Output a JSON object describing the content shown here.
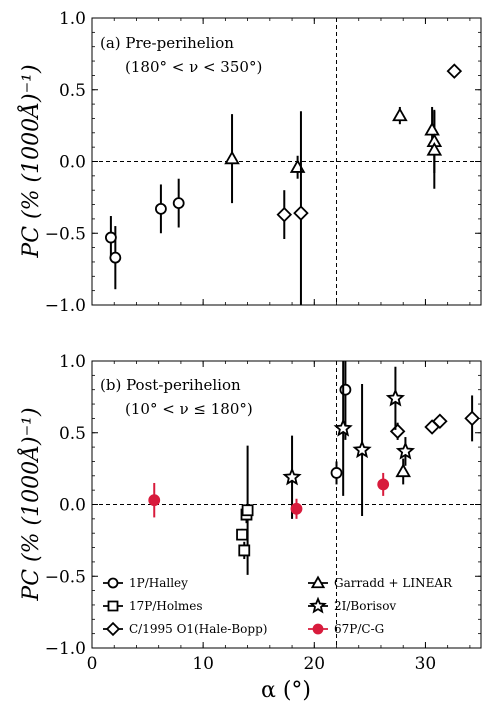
{
  "chart_data": [
    {
      "type": "scatter",
      "panel": "a",
      "title": "(a) Pre-perihelion",
      "subtitle": "(180° < ν < 350°)",
      "xlabel": "α (°)",
      "ylabel": "PC (% (1000Å)⁻¹)",
      "xlim": [
        0,
        35
      ],
      "ylim": [
        -1.0,
        1.0
      ],
      "xticks": [
        0,
        10,
        20,
        30
      ],
      "yticks": [
        -1.0,
        -0.5,
        0.0,
        0.5,
        1.0
      ],
      "tick_labels_y": [
        "−1.0",
        "−0.5",
        "0.0",
        "0.5",
        "1.0"
      ],
      "tick_labels_x": [
        "0",
        "10",
        "20",
        "30"
      ],
      "show_x_tick_labels": false,
      "vline_x": 22,
      "hline_y": 0,
      "grid": false,
      "series": [
        {
          "name": "1P/Halley",
          "marker": "circle",
          "color": "#000000",
          "filled": false,
          "points": [
            {
              "x": 1.7,
              "y": -0.53,
              "err": 0.15
            },
            {
              "x": 2.1,
              "y": -0.67,
              "err": 0.22
            },
            {
              "x": 6.2,
              "y": -0.33,
              "err": 0.17
            },
            {
              "x": 7.8,
              "y": -0.29,
              "err": 0.17
            }
          ]
        },
        {
          "name": "Garradd + LINEAR",
          "marker": "triangle",
          "color": "#000000",
          "filled": false,
          "points": [
            {
              "x": 12.6,
              "y": 0.02,
              "err": 0.31
            },
            {
              "x": 18.5,
              "y": -0.04,
              "err": 0.08
            },
            {
              "x": 27.7,
              "y": 0.32,
              "err": 0.06
            },
            {
              "x": 30.6,
              "y": 0.22,
              "err": 0.16
            },
            {
              "x": 30.8,
              "y": 0.14,
              "err": 0.22
            },
            {
              "x": 30.8,
              "y": 0.08,
              "err": 0.27
            }
          ]
        },
        {
          "name": "C/1995 O1(Hale-Bopp)",
          "marker": "diamond",
          "color": "#000000",
          "filled": false,
          "points": [
            {
              "x": 17.3,
              "y": -0.37,
              "err": 0.17
            },
            {
              "x": 18.8,
              "y": -0.36,
              "err": 0.71
            },
            {
              "x": 32.6,
              "y": 0.63,
              "err": 0
            }
          ]
        }
      ]
    },
    {
      "type": "scatter",
      "panel": "b",
      "title": "(b) Post-perihelion",
      "subtitle": "(10° < ν ≤ 180°)",
      "xlabel": "α (°)",
      "ylabel": "PC (% (1000Å)⁻¹)",
      "xlim": [
        0,
        35
      ],
      "ylim": [
        -1.0,
        1.0
      ],
      "xticks": [
        0,
        10,
        20,
        30
      ],
      "yticks": [
        -1.0,
        -0.5,
        0.0,
        0.5,
        1.0
      ],
      "tick_labels_y": [
        "−1.0",
        "−0.5",
        "0.0",
        "0.5",
        "1.0"
      ],
      "tick_labels_x": [
        "0",
        "10",
        "20",
        "30"
      ],
      "show_x_tick_labels": true,
      "vline_x": 22,
      "hline_y": 0,
      "grid": false,
      "legend_placement": "bottom",
      "legend": [
        {
          "label": "1P/Halley",
          "marker": "circle",
          "color": "#000000",
          "filled": false
        },
        {
          "label": "17P/Holmes",
          "marker": "square",
          "color": "#000000",
          "filled": false
        },
        {
          "label": "C/1995 O1(Hale-Bopp)",
          "marker": "diamond",
          "color": "#000000",
          "filled": false
        },
        {
          "label": "Garradd + LINEAR",
          "marker": "triangle",
          "color": "#000000",
          "filled": false
        },
        {
          "label": "2I/Borisov",
          "marker": "star",
          "color": "#000000",
          "filled": false
        },
        {
          "label": "67P/C-G",
          "marker": "circle",
          "color": "#d81b3c",
          "filled": true
        }
      ],
      "series": [
        {
          "name": "1P/Halley",
          "marker": "circle",
          "color": "#000000",
          "filled": false,
          "points": [
            {
              "x": 22.0,
              "y": 0.22,
              "err": 0.08
            },
            {
              "x": 22.8,
              "y": 0.8,
              "err": 0.35
            }
          ]
        },
        {
          "name": "17P/Holmes",
          "marker": "square",
          "color": "#000000",
          "filled": false,
          "points": [
            {
              "x": 13.5,
              "y": -0.21,
              "err": 0.04
            },
            {
              "x": 13.7,
              "y": -0.32,
              "err": 0.06
            },
            {
              "x": 13.9,
              "y": -0.07,
              "err": 0.06
            },
            {
              "x": 14.0,
              "y": -0.04,
              "err": 0.45
            }
          ]
        },
        {
          "name": "C/1995 O1(Hale-Bopp)",
          "marker": "diamond",
          "color": "#000000",
          "filled": false,
          "points": [
            {
              "x": 27.5,
              "y": 0.51,
              "err": 0.06
            },
            {
              "x": 30.6,
              "y": 0.54,
              "err": 0.04
            },
            {
              "x": 31.3,
              "y": 0.58,
              "err": 0.04
            },
            {
              "x": 34.2,
              "y": 0.6,
              "err": 0.16
            }
          ]
        },
        {
          "name": "Garradd + LINEAR",
          "marker": "triangle",
          "color": "#000000",
          "filled": false,
          "points": [
            {
              "x": 28.0,
              "y": 0.23,
              "err": 0.09
            }
          ]
        },
        {
          "name": "2I/Borisov",
          "marker": "star",
          "color": "#000000",
          "filled": false,
          "points": [
            {
              "x": 18.0,
              "y": 0.19,
              "err": 0.29
            },
            {
              "x": 22.6,
              "y": 0.53,
              "err": 0.47
            },
            {
              "x": 24.3,
              "y": 0.38,
              "err": 0.46
            },
            {
              "x": 27.3,
              "y": 0.74,
              "err": 0.22
            },
            {
              "x": 28.2,
              "y": 0.37,
              "err": 0.1
            }
          ]
        },
        {
          "name": "67P/C-G",
          "marker": "circle",
          "color": "#d81b3c",
          "filled": true,
          "points": [
            {
              "x": 5.6,
              "y": 0.03,
              "err": 0.12
            },
            {
              "x": 18.4,
              "y": -0.03,
              "err": 0.07
            },
            {
              "x": 26.2,
              "y": 0.14,
              "err": 0.08
            }
          ]
        }
      ]
    }
  ]
}
